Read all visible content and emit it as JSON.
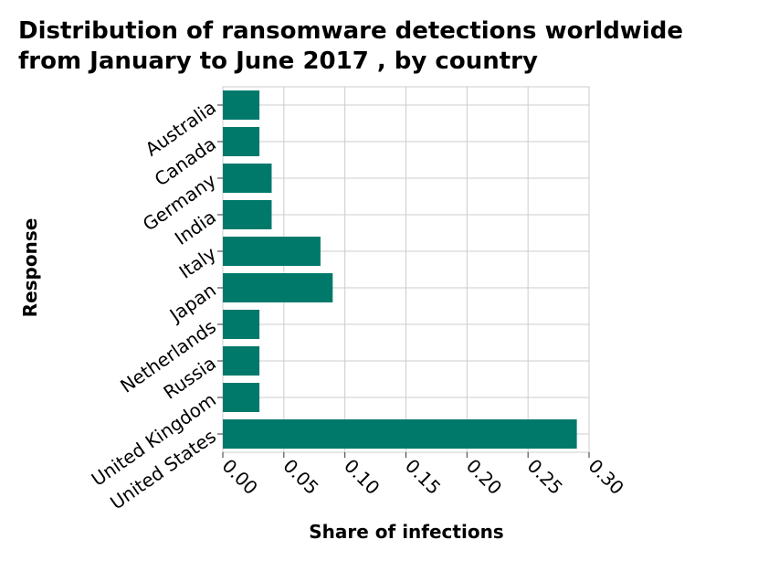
{
  "chart_data": {
    "type": "bar",
    "orientation": "horizontal",
    "title_lines": [
      "Distribution of ransomware detections worldwide",
      "from January to June 2017 , by country"
    ],
    "xlabel": "Share of infections",
    "ylabel": "Response",
    "categories": [
      "Australia",
      "Canada",
      "Germany",
      "India",
      "Italy",
      "Japan",
      "Netherlands",
      "Russia",
      "United Kingdom",
      "United States"
    ],
    "values": [
      0.03,
      0.03,
      0.04,
      0.04,
      0.08,
      0.09,
      0.03,
      0.03,
      0.03,
      0.29
    ],
    "xlim": [
      0,
      0.3
    ],
    "xticks": [
      "0.00",
      "0.05",
      "0.10",
      "0.15",
      "0.20",
      "0.25",
      "0.30"
    ],
    "grid": true,
    "bar_color": "#00796b"
  }
}
